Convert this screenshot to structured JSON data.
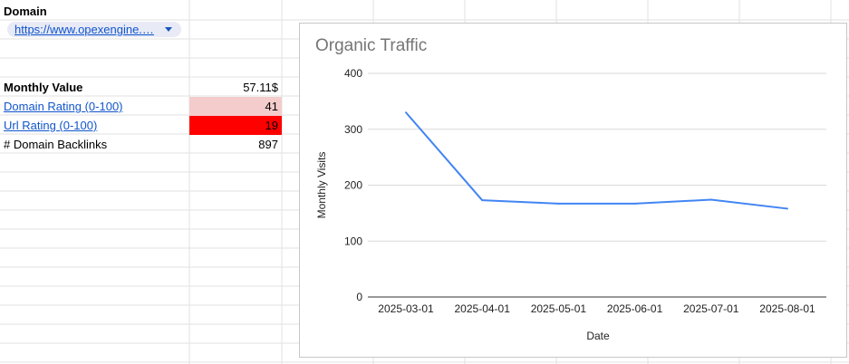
{
  "sheet": {
    "domain_label": "Domain",
    "domain_chip_text": "https://www.opexengine.…",
    "rows": [
      {
        "label": "Monthly Value",
        "value": "57.11$",
        "label_style": "bold",
        "value_bg": ""
      },
      {
        "label": "Domain Rating (0-100)",
        "value": "41",
        "label_style": "link",
        "value_bg": "#f4cccc"
      },
      {
        "label": "Url Rating (0-100)",
        "value": "19",
        "label_style": "link",
        "value_bg": "#ff0000"
      },
      {
        "label": "# Domain Backlinks",
        "value": "897",
        "label_style": "plain",
        "value_bg": ""
      }
    ]
  },
  "colors": {
    "line": "#4285f4",
    "gridline": "#d9d9d9",
    "cell_border": "#e2e2e2"
  },
  "chart_data": {
    "type": "line",
    "title": "Organic Traffic",
    "xlabel": "Date",
    "ylabel": "Monthly Visits",
    "categories": [
      "2025-03-01",
      "2025-04-01",
      "2025-05-01",
      "2025-06-01",
      "2025-07-01",
      "2025-08-01"
    ],
    "values": [
      330,
      173,
      167,
      167,
      174,
      158
    ],
    "ylim": [
      0,
      400
    ],
    "yticks": [
      "0",
      "100",
      "200",
      "300",
      "400"
    ],
    "grid": true
  }
}
